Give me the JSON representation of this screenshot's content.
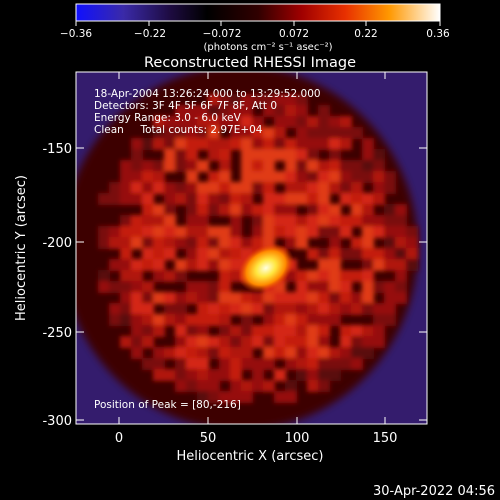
{
  "chart_data": {
    "type": "heatmap",
    "title": "Reconstructed RHESSI Image",
    "xlabel": "Heliocentric X (arcsec)",
    "ylabel": "Heliocentric Y (arcsec)",
    "xlim": [
      -28,
      170
    ],
    "ylim": [
      -303,
      -121
    ],
    "x_ticks": [
      0,
      50,
      100,
      150
    ],
    "y_ticks": [
      -300,
      -250,
      -200,
      -150
    ],
    "grid": false,
    "colorbar": {
      "min": -0.36,
      "max": 0.36,
      "ticks": [
        "−0.36",
        "−0.22",
        "−0.072",
        "0.072",
        "0.22",
        "0.36"
      ],
      "units_label": "(photons cm⁻² s⁻¹ asec⁻²)"
    },
    "annotations": [
      "18-Apr-2004 13:26:24.000 to 13:29:52.000",
      "Detectors: 3F 4F 5F 6F 7F 8F, Att 0",
      "Energy Range: 3.0 - 6.0 keV",
      "Clean     Total counts: 2.97E+04"
    ],
    "peak_label": "Position of Peak = [80,-216]",
    "peak": {
      "x": 80,
      "y": -216,
      "value": 0.36
    },
    "disk_center": {
      "x": 72,
      "y": -212
    },
    "disk_radius_arcsec": 88
  },
  "footer": {
    "timestamp": "30-Apr-2022 04:56"
  },
  "colors": {
    "background": "#000000",
    "outer_field": "#3a1f78",
    "disk_base": "#b8100c",
    "peak": "#fff6b0"
  }
}
